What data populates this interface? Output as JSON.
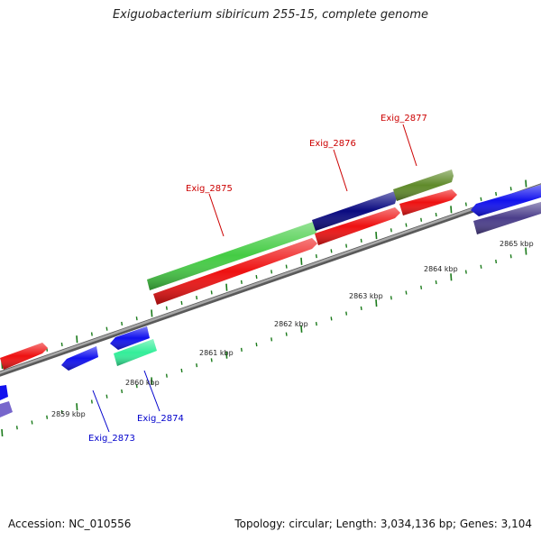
{
  "title": "Exiguobacterium sibiricum 255-15, complete genome",
  "footer": {
    "accession": "Accession: NC_010556",
    "summary": "Topology: circular; Length: 3,034,136 bp; Genes: 3,104"
  },
  "colors": {
    "backbone": "#8a8a8a",
    "tick": "#1a7a1a",
    "label_forward": "#cc0000",
    "label_reverse": "#0000cc"
  },
  "scale_labels": [
    "2859 kbp",
    "2860 kbp",
    "2861 kbp",
    "2862 kbp",
    "2863 kbp",
    "2864 kbp",
    "2865 kbp"
  ],
  "gene_labels": [
    {
      "text": "Exig_2873",
      "strand": "reverse"
    },
    {
      "text": "Exig_2874",
      "strand": "reverse"
    },
    {
      "text": "Exig_2875",
      "strand": "forward"
    },
    {
      "text": "Exig_2876",
      "strand": "forward"
    },
    {
      "text": "Exig_2877",
      "strand": "forward"
    }
  ]
}
